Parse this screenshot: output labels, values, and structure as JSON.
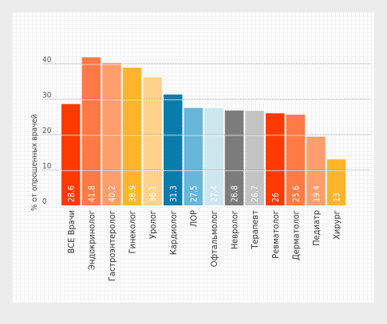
{
  "chart_data": {
    "type": "bar",
    "title": "",
    "xlabel": "",
    "ylabel": "% от опрошенных врачей",
    "ylim": [
      0,
      45
    ],
    "yticks": [
      0,
      10,
      20,
      30,
      40
    ],
    "grid": "dotted horizontal lines at y ticks",
    "categories": [
      "ВСЕ Врачи",
      "Эндокринолог",
      "Гастроэнтеролог",
      "Гинеколог",
      "Уролог",
      "Кардиолог",
      "ЛОР",
      "Офтальмолог",
      "Невролог",
      "Терапевт",
      "Ревматолог",
      "Дерматолог",
      "Педиатр",
      "Хирург"
    ],
    "values": [
      28.6,
      41.8,
      40.2,
      38.9,
      36.1,
      31.3,
      27.5,
      27.4,
      26.8,
      26.7,
      26,
      25.6,
      19.4,
      13
    ],
    "value_labels": [
      "28.6",
      "41.8",
      "40.2",
      "38.9",
      "36.1",
      "31.3",
      "27.5",
      "27.4",
      "26.8",
      "26.7",
      "26",
      "25.6",
      "19.4",
      "13"
    ],
    "colors": [
      "#ff3a00",
      "#ff7a45",
      "#ff9e6a",
      "#ffb52b",
      "#ffd28a",
      "#0a7cab",
      "#68b6d8",
      "#cde6f0",
      "#7c7c7c",
      "#c4c4c4",
      "#ff3a00",
      "#ff7a45",
      "#ff9e6a",
      "#ffb52b"
    ]
  }
}
